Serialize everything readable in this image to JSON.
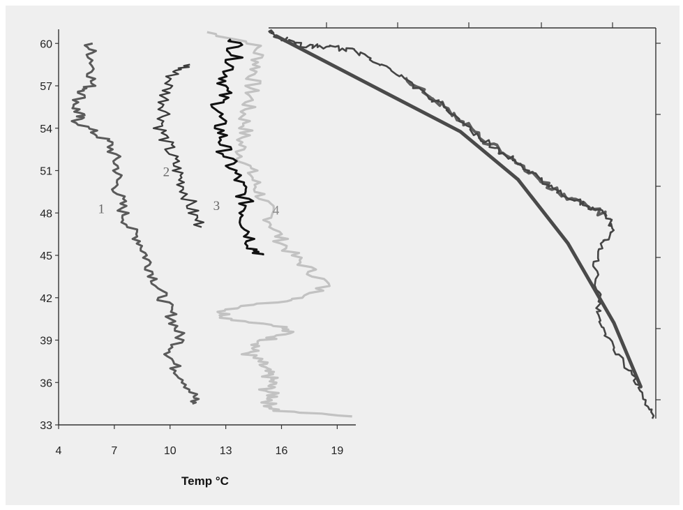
{
  "chart_data": {
    "type": "line",
    "orientation": "vertical-profiles",
    "title": "",
    "xlabel": "Temp °C",
    "ylabel": "",
    "xlim": [
      4,
      20
    ],
    "ylim": [
      33,
      61
    ],
    "x_ticks": [
      4,
      7,
      10,
      13,
      16,
      19
    ],
    "y_ticks": [
      33,
      36,
      39,
      42,
      45,
      48,
      51,
      54,
      57,
      60
    ],
    "grid": false,
    "legend": "none",
    "colors": {
      "background": "#efefef",
      "axis": "#333333",
      "s1": "#5a5a5a",
      "s2": "#3c3c3c",
      "s3": "#111111",
      "s4": "#c2c2c2",
      "trace": "#444444",
      "smooth": "#4a4a4a"
    },
    "series": [
      {
        "label": "1",
        "y": [
          60.0,
          59.2,
          58.0,
          57.0,
          56.5,
          55.5,
          55.0,
          54.5,
          53.7,
          53.0,
          52.0,
          51.0,
          50.0,
          49.0,
          48.0,
          47.0,
          46.0,
          45.0,
          44.0,
          43.0,
          42.0,
          41.0,
          40.0,
          39.0,
          38.0,
          37.0,
          36.0,
          35.0,
          34.5
        ],
        "x": [
          5.6,
          5.8,
          5.9,
          5.7,
          5.3,
          4.9,
          5.1,
          5.0,
          5.9,
          6.7,
          7.0,
          7.2,
          7.1,
          7.3,
          7.5,
          7.8,
          8.4,
          8.7,
          9.0,
          9.3,
          9.6,
          10.0,
          10.3,
          10.6,
          10.0,
          10.3,
          10.9,
          11.3,
          11.2
        ]
      },
      {
        "label": "2",
        "y": [
          58.5,
          58.0,
          57.0,
          56.0,
          55.0,
          54.0,
          53.0,
          52.0,
          51.0,
          50.0,
          49.0,
          48.0,
          47.0
        ],
        "x": [
          11.1,
          10.2,
          9.9,
          9.7,
          9.8,
          9.5,
          9.8,
          10.1,
          10.4,
          10.7,
          11.0,
          11.2,
          11.7
        ]
      },
      {
        "label": "3",
        "y": [
          60.3,
          59.5,
          58.5,
          57.5,
          56.5,
          55.5,
          54.5,
          53.5,
          52.5,
          51.5,
          50.5,
          49.5,
          48.5,
          47.5,
          46.5,
          45.5,
          45.0
        ],
        "x": [
          13.6,
          13.5,
          13.4,
          13.0,
          12.9,
          12.6,
          12.6,
          12.8,
          12.9,
          13.2,
          13.6,
          13.9,
          14.1,
          14.0,
          14.3,
          14.5,
          15.0
        ]
      },
      {
        "label": "4",
        "y": [
          60.8,
          60.0,
          59.0,
          58.0,
          57.0,
          56.0,
          55.0,
          54.0,
          53.0,
          52.0,
          51.0,
          50.0,
          49.0,
          48.0,
          47.0,
          46.0,
          45.0,
          44.0,
          43.0,
          42.0,
          41.5,
          41.0,
          40.5,
          40.0,
          39.5,
          39.0,
          38.5,
          38.0,
          37.5,
          37.0,
          36.5,
          36.0,
          35.5,
          35.0,
          34.5,
          34.0,
          33.6
        ],
        "x": [
          12.0,
          14.5,
          14.8,
          14.6,
          14.4,
          14.3,
          14.0,
          14.1,
          13.8,
          13.9,
          14.3,
          14.6,
          15.0,
          15.3,
          15.6,
          16.0,
          16.6,
          17.5,
          18.4,
          17.5,
          14.5,
          12.8,
          13.2,
          16.0,
          16.3,
          15.2,
          14.6,
          14.2,
          14.8,
          15.0,
          15.3,
          15.5,
          15.2,
          15.6,
          15.3,
          15.8,
          19.8
        ]
      }
    ],
    "series_labels": [
      "1",
      "2",
      "3",
      "4"
    ],
    "right_panel": {
      "trace": [
        [
          0.0,
          0.0
        ],
        [
          0.02,
          0.02
        ],
        [
          0.05,
          0.04
        ],
        [
          0.1,
          0.06
        ],
        [
          0.15,
          0.06
        ],
        [
          0.2,
          0.07
        ],
        [
          0.25,
          0.09
        ],
        [
          0.3,
          0.13
        ],
        [
          0.35,
          0.18
        ],
        [
          0.4,
          0.23
        ],
        [
          0.45,
          0.28
        ],
        [
          0.5,
          0.34
        ],
        [
          0.55,
          0.4
        ],
        [
          0.6,
          0.45
        ],
        [
          0.65,
          0.5
        ],
        [
          0.7,
          0.55
        ],
        [
          0.75,
          0.6
        ],
        [
          0.8,
          0.64
        ],
        [
          0.85,
          0.67
        ],
        [
          0.88,
          0.7
        ],
        [
          0.9,
          0.74
        ],
        [
          0.87,
          0.8
        ],
        [
          0.85,
          0.88
        ],
        [
          0.86,
          1.0
        ],
        [
          0.86,
          1.1
        ],
        [
          0.9,
          1.2
        ],
        [
          0.95,
          1.3
        ],
        [
          0.98,
          1.38
        ],
        [
          1.0,
          1.46
        ]
      ],
      "smooth": [
        [
          0.02,
          0.02
        ],
        [
          0.3,
          0.23
        ],
        [
          0.5,
          0.38
        ],
        [
          0.65,
          0.56
        ],
        [
          0.78,
          0.8
        ],
        [
          0.9,
          1.1
        ],
        [
          0.97,
          1.34
        ]
      ]
    }
  }
}
